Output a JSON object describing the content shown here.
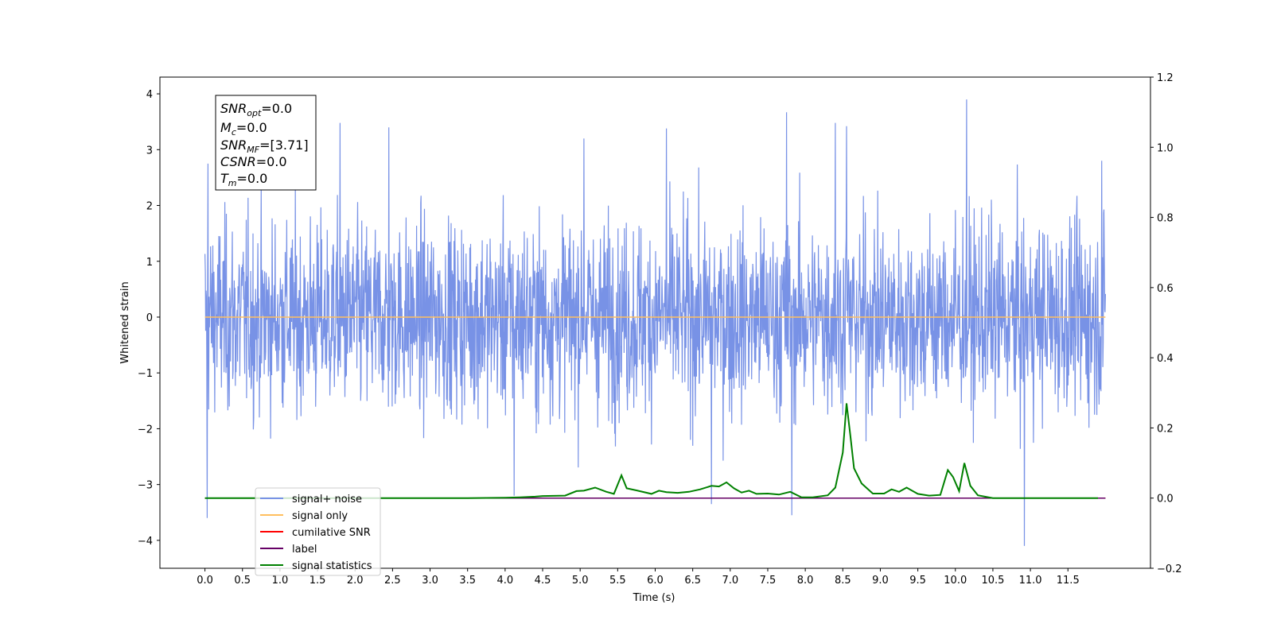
{
  "chart_data": {
    "type": "line",
    "xlabel": "Time (s)",
    "ylabel": "Whitened strain",
    "xlim": [
      -0.6,
      12.6
    ],
    "ylim": [
      -4.5,
      4.3
    ],
    "y2lim": [
      -0.2,
      1.2
    ],
    "x_ticks": [
      "0.0",
      "0.5",
      "1.0",
      "1.5",
      "2.0",
      "2.5",
      "3.0",
      "3.5",
      "4.0",
      "4.5",
      "5.0",
      "5.5",
      "6.0",
      "6.5",
      "7.0",
      "7.5",
      "8.0",
      "8.5",
      "9.0",
      "9.5",
      "10.0",
      "10.5",
      "11.0",
      "11.5"
    ],
    "y_ticks": [
      "4",
      "3",
      "2",
      "1",
      "0",
      "−1",
      "−2",
      "−3",
      "−4"
    ],
    "y2_ticks": [
      "1.2",
      "1.0",
      "0.8",
      "0.6",
      "0.4",
      "0.2",
      "0.0",
      "−0.2"
    ],
    "grid": false,
    "legend_position": "lower-left",
    "info_box": {
      "lines": [
        {
          "base": "SNR",
          "sub": "opt",
          "value": "=0.0"
        },
        {
          "base": "M",
          "sub": "c",
          "value": "=0.0"
        },
        {
          "base": "SNR",
          "sub": "MF",
          "value": "=[3.71]"
        },
        {
          "base": "CSNR",
          "sub": "",
          "value": "=0.0"
        },
        {
          "base": "T",
          "sub": "m",
          "value": "=0.0"
        }
      ]
    },
    "series": [
      {
        "name": "signal+ noise",
        "color": "#7892e6",
        "axis": "left",
        "kind": "noise",
        "x_range": [
          0.0,
          12.0
        ],
        "envelope_typical": [
          -2.3,
          2.5
        ],
        "spikes": [
          [
            0.03,
            -3.6
          ],
          [
            0.04,
            2.75
          ],
          [
            1.8,
            3.48
          ],
          [
            2.45,
            3.4
          ],
          [
            4.12,
            -3.2
          ],
          [
            5.05,
            3.2
          ],
          [
            6.15,
            3.38
          ],
          [
            6.75,
            -3.35
          ],
          [
            7.75,
            3.67
          ],
          [
            7.82,
            -3.55
          ],
          [
            8.4,
            3.48
          ],
          [
            8.55,
            3.42
          ],
          [
            10.15,
            3.9
          ],
          [
            10.92,
            -4.1
          ],
          [
            11.95,
            2.8
          ]
        ]
      },
      {
        "name": "signal only",
        "color": "#ffbf5f",
        "axis": "left",
        "x": [
          0.0,
          12.0
        ],
        "y": [
          0.0,
          0.0
        ]
      },
      {
        "name": "cumilative SNR",
        "color": "#ff0000",
        "axis": "right",
        "x": [
          0.0,
          12.0
        ],
        "y": [
          0.0,
          0.0
        ]
      },
      {
        "name": "label",
        "color": "#660066",
        "axis": "right",
        "x": [
          0.0,
          12.0
        ],
        "y": [
          0.0,
          0.0
        ]
      },
      {
        "name": "signal statistics",
        "color": "#008000",
        "axis": "right",
        "x": [
          0.0,
          0.5,
          1.0,
          1.5,
          2.0,
          2.5,
          3.0,
          3.5,
          4.0,
          4.2,
          4.4,
          4.5,
          4.8,
          4.95,
          5.05,
          5.2,
          5.35,
          5.45,
          5.55,
          5.62,
          5.75,
          5.95,
          6.05,
          6.15,
          6.3,
          6.45,
          6.6,
          6.75,
          6.85,
          6.95,
          7.05,
          7.15,
          7.25,
          7.35,
          7.5,
          7.65,
          7.8,
          7.95,
          8.1,
          8.3,
          8.4,
          8.5,
          8.55,
          8.6,
          8.65,
          8.75,
          8.9,
          9.05,
          9.15,
          9.25,
          9.35,
          9.5,
          9.65,
          9.8,
          9.9,
          9.97,
          10.05,
          10.12,
          10.2,
          10.3,
          10.5,
          11.0,
          11.5,
          11.9
        ],
        "y": [
          0.0,
          0.0,
          0.0,
          0.0,
          0.0,
          0.0,
          0.0,
          0.0,
          0.001,
          0.002,
          0.004,
          0.006,
          0.007,
          0.02,
          0.021,
          0.03,
          0.018,
          0.012,
          0.065,
          0.028,
          0.022,
          0.012,
          0.021,
          0.017,
          0.015,
          0.018,
          0.025,
          0.035,
          0.033,
          0.045,
          0.028,
          0.016,
          0.021,
          0.012,
          0.013,
          0.01,
          0.018,
          0.002,
          0.002,
          0.008,
          0.03,
          0.13,
          0.27,
          0.18,
          0.085,
          0.042,
          0.013,
          0.013,
          0.025,
          0.018,
          0.03,
          0.012,
          0.007,
          0.009,
          0.08,
          0.06,
          0.02,
          0.1,
          0.035,
          0.008,
          0.0,
          0.0,
          0.0,
          0.0
        ]
      }
    ]
  }
}
